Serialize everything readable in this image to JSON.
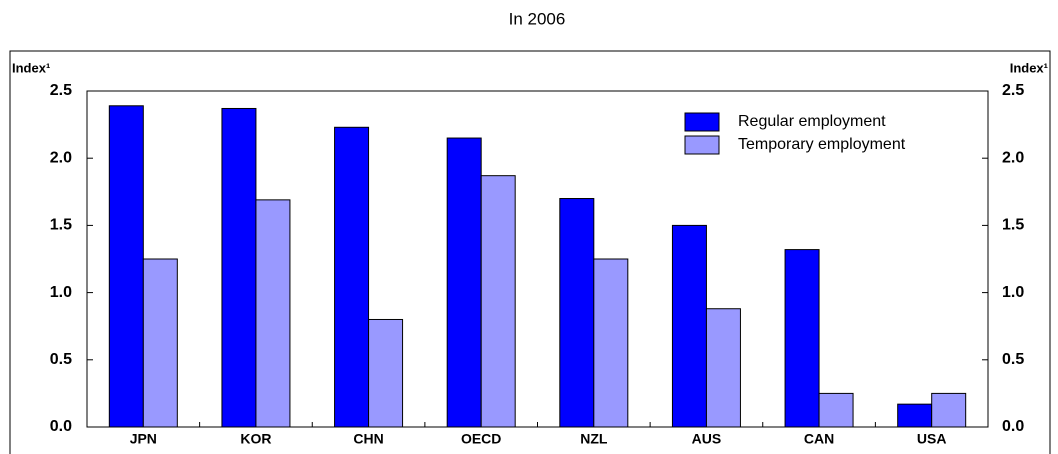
{
  "chart_data": {
    "type": "bar",
    "title": "In 2006",
    "ylabel": "Index¹",
    "y2label": "Index¹",
    "categories": [
      "JPN",
      "KOR",
      "CHN",
      "OECD",
      "NZL",
      "AUS",
      "CAN",
      "USA"
    ],
    "series": [
      {
        "name": "Regular employment",
        "color": "#0000ff",
        "values": [
          2.39,
          2.37,
          2.23,
          2.15,
          1.7,
          1.5,
          1.32,
          0.17
        ]
      },
      {
        "name": "Temporary employment",
        "color": "#9999ff",
        "values": [
          1.25,
          1.69,
          0.8,
          1.87,
          1.25,
          0.88,
          0.25,
          0.25
        ]
      }
    ],
    "ylim": [
      0,
      2.5
    ],
    "yticks": [
      {
        "value": 0,
        "label": "0.0"
      },
      0.5,
      {
        "value": 1,
        "label": "1.0"
      },
      1.5,
      {
        "value": 2,
        "label": "2.0"
      },
      2.5
    ],
    "y2lim": [
      0,
      2.5
    ],
    "y2ticks": [
      {
        "value": 0,
        "label": "0.0"
      },
      0.5,
      {
        "value": 1,
        "label": "1.0"
      },
      1.5,
      {
        "value": 2,
        "label": "2.0"
      },
      2.5
    ],
    "legend": "upper right"
  }
}
